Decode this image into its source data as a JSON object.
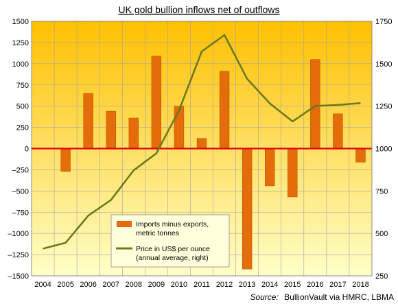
{
  "colors": {
    "bar": "#E46C0A",
    "bar_edge": "#B24F00",
    "line": "#6B7A1C",
    "zero_line": "#E00000",
    "bg_top": "#FFC000",
    "bg_bottom": "#FFFFC8",
    "grid": "#A0A0A0"
  },
  "chart_data": {
    "type": "bar",
    "title": "UK gold bullion inflows net of outflows",
    "categories": [
      "2004",
      "2005",
      "2006",
      "2007",
      "2008",
      "2009",
      "2010",
      "2011",
      "2012",
      "2013",
      "2014",
      "2015",
      "2016",
      "2017",
      "2018"
    ],
    "series": [
      {
        "name": "Imports minus exports, metric tonnes",
        "type": "bar",
        "axis": "left",
        "values": [
          null,
          -270,
          650,
          440,
          360,
          1090,
          500,
          120,
          910,
          -1420,
          -440,
          -570,
          1050,
          410,
          -160
        ]
      },
      {
        "name": "Price in US$ per ounce (annual average, right)",
        "type": "line",
        "axis": "right",
        "values": [
          410,
          445,
          605,
          697,
          872,
          972,
          1225,
          1572,
          1669,
          1411,
          1266,
          1160,
          1251,
          1257,
          1268
        ]
      }
    ],
    "y_left": {
      "min": -1500,
      "max": 1500,
      "ticks": [
        1500,
        1250,
        1000,
        750,
        500,
        250,
        0,
        -250,
        -500,
        -750,
        -1000,
        -1250,
        -1500
      ],
      "tick_labels": [
        "1500",
        "1250",
        "1000",
        "750",
        "500",
        "250",
        "0",
        "–250",
        "–500",
        "–750",
        "–1000",
        "–1250",
        "–1500"
      ]
    },
    "y_right": {
      "min": 250,
      "max": 1750,
      "ticks": [
        1750,
        1500,
        1250,
        1000,
        750,
        500,
        250
      ],
      "tick_labels": [
        "1750",
        "1500",
        "1250",
        "1000",
        "750",
        "500",
        "250"
      ]
    },
    "grid": true,
    "legend": {
      "placement": "bottom-center",
      "entries": [
        {
          "kind": "bar",
          "lines": [
            "Imports minus exports,",
            "metric tonnes"
          ]
        },
        {
          "kind": "line",
          "lines": [
            "Price in US$ per ounce",
            "(annual average, right)"
          ]
        }
      ]
    },
    "source": {
      "label": "Source:",
      "text": "BullionVault via HMRC, LBMA"
    }
  }
}
